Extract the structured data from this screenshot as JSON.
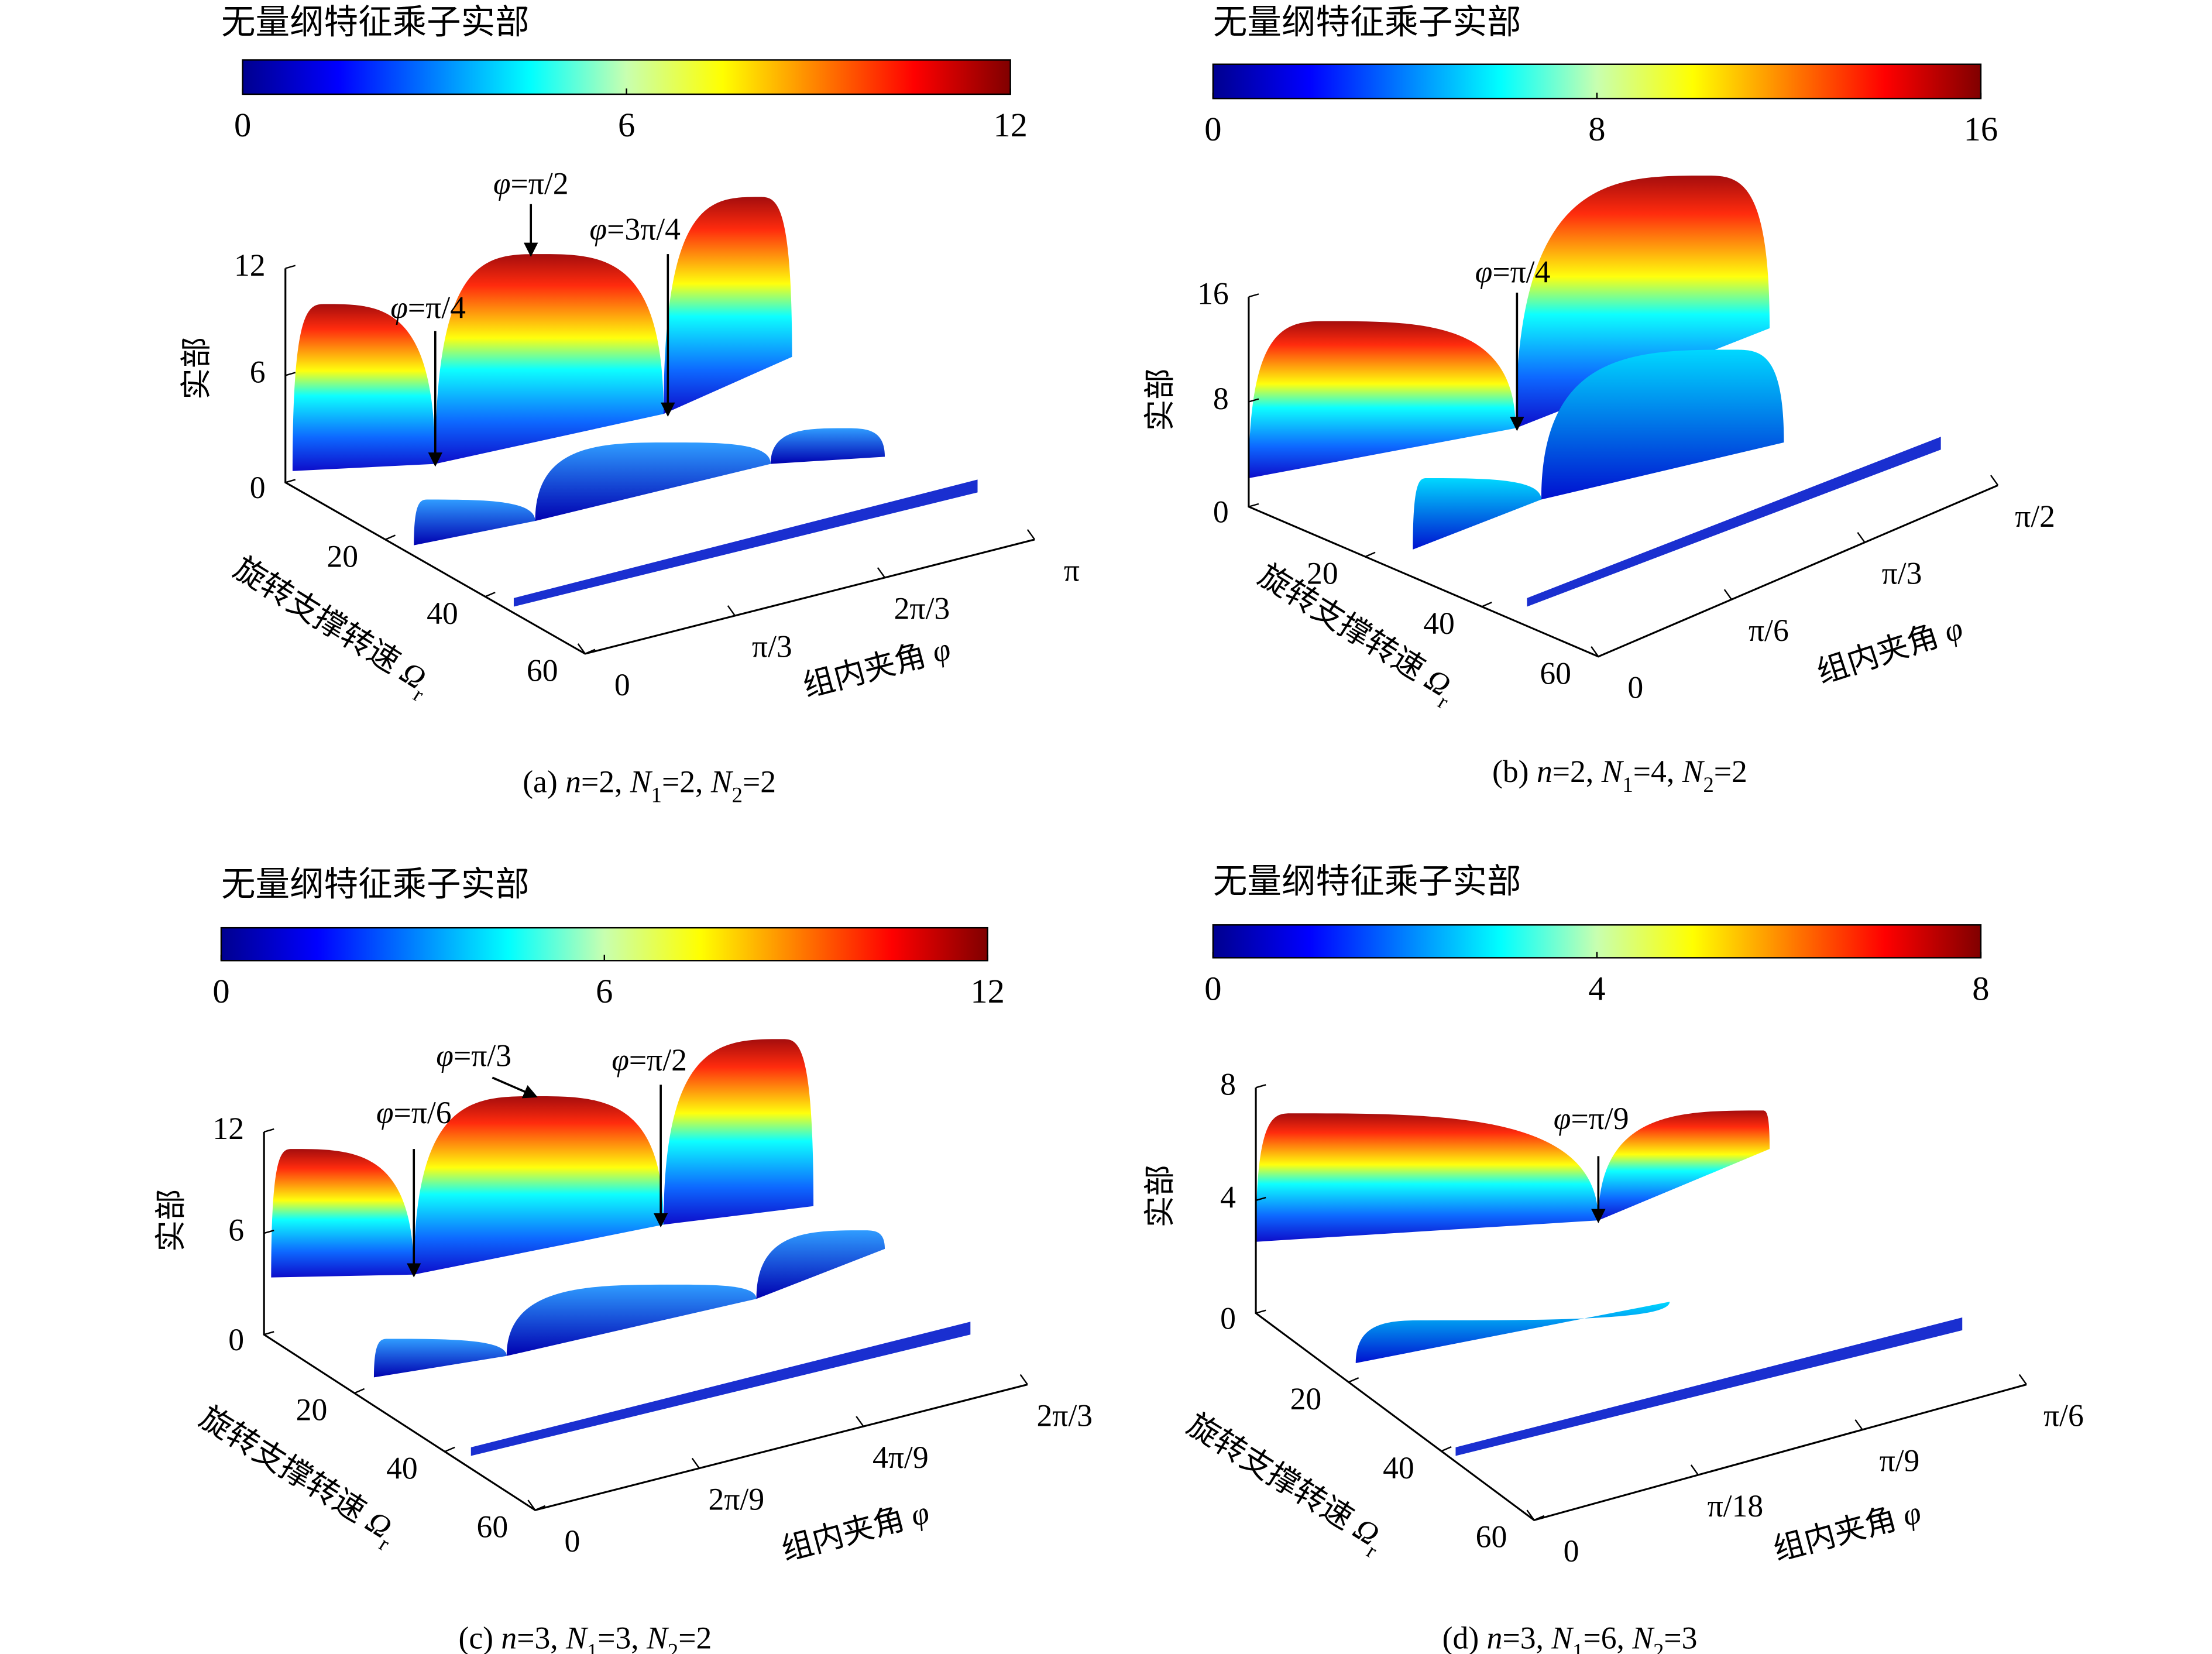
{
  "panels": [
    {
      "colorbar": {
        "title": "无量纲特征乘子实部",
        "lim": [
          0,
          12
        ],
        "ticks": [
          0,
          6,
          12
        ]
      },
      "z_axis": {
        "label": "实部",
        "lim": [
          0,
          12
        ],
        "ticks": [
          0,
          6,
          12
        ]
      },
      "depth_axis": {
        "label": [
          "旋转支撑转速 ",
          "Ω",
          "r"
        ],
        "lim": [
          0,
          60
        ],
        "ticks": [
          20,
          40,
          60
        ]
      },
      "x_axis": {
        "label": [
          "组内夹角 ",
          "φ"
        ],
        "lim": [
          0,
          3.1416
        ],
        "ticks": [
          0,
          {
            "value": 1.0472,
            "label": "π/3"
          },
          {
            "value": 2.0944,
            "label": "2π/3"
          },
          {
            "value": 3.1416,
            "label": "π"
          }
        ]
      },
      "annotations": [
        [
          "φ",
          "=π/4"
        ],
        [
          "φ",
          "=π/2"
        ],
        [
          "φ",
          "=3π/4"
        ]
      ],
      "caption": [
        "(a) ",
        "n",
        "=2, ",
        "N",
        "1",
        "=2, ",
        "N",
        "2",
        "=2"
      ]
    },
    {
      "colorbar": {
        "title": "无量纲特征乘子实部",
        "lim": [
          0,
          16
        ],
        "ticks": [
          0,
          8,
          16
        ]
      },
      "z_axis": {
        "label": "实部",
        "lim": [
          0,
          16
        ],
        "ticks": [
          0,
          8,
          16
        ]
      },
      "depth_axis": {
        "label": [
          "旋转支撑转速 ",
          "Ω",
          "r"
        ],
        "lim": [
          0,
          60
        ],
        "ticks": [
          20,
          40,
          60
        ]
      },
      "x_axis": {
        "label": [
          "组内夹角 ",
          "φ"
        ],
        "lim": [
          0,
          1.5708
        ],
        "ticks": [
          0,
          {
            "value": 0.5236,
            "label": "π/6"
          },
          {
            "value": 1.0472,
            "label": "π/3"
          },
          {
            "value": 1.5708,
            "label": "π/2"
          }
        ]
      },
      "annotations": [
        [
          "φ",
          "=π/4"
        ]
      ],
      "caption": [
        "(b) ",
        "n",
        "=2, ",
        "N",
        "1",
        "=4, ",
        "N",
        "2",
        "=2"
      ]
    },
    {
      "colorbar": {
        "title": "无量纲特征乘子实部",
        "lim": [
          0,
          12
        ],
        "ticks": [
          0,
          6,
          12
        ]
      },
      "z_axis": {
        "label": "实部",
        "lim": [
          0,
          12
        ],
        "ticks": [
          0,
          6,
          12
        ]
      },
      "depth_axis": {
        "label": [
          "旋转支撑转速 ",
          "Ω",
          "r"
        ],
        "lim": [
          0,
          60
        ],
        "ticks": [
          20,
          40,
          60
        ]
      },
      "x_axis": {
        "label": [
          "组内夹角 ",
          "φ"
        ],
        "lim": [
          0,
          2.0944
        ],
        "ticks": [
          0,
          {
            "value": 0.6981,
            "label": "2π/9"
          },
          {
            "value": 1.3963,
            "label": "4π/9"
          },
          {
            "value": 2.0944,
            "label": "2π/3"
          }
        ]
      },
      "annotations": [
        [
          "φ",
          "=π/6"
        ],
        [
          "φ",
          "=π/3"
        ],
        [
          "φ",
          "=π/2"
        ]
      ],
      "caption": [
        "(c) ",
        "n",
        "=3, ",
        "N",
        "1",
        "=3, ",
        "N",
        "2",
        "=2"
      ]
    },
    {
      "colorbar": {
        "title": "无量纲特征乘子实部",
        "lim": [
          0,
          8
        ],
        "ticks": [
          0,
          4,
          8
        ]
      },
      "z_axis": {
        "label": "实部",
        "lim": [
          0,
          8
        ],
        "ticks": [
          0,
          4,
          8
        ]
      },
      "depth_axis": {
        "label": [
          "旋转支撑转速 ",
          "Ω",
          "r"
        ],
        "lim": [
          0,
          60
        ],
        "ticks": [
          20,
          40,
          60
        ]
      },
      "x_axis": {
        "label": [
          "组内夹角 ",
          "φ"
        ],
        "lim": [
          0,
          0.5236
        ],
        "ticks": [
          0,
          {
            "value": 0.1745,
            "label": "π/18"
          },
          {
            "value": 0.3491,
            "label": "π/9"
          },
          {
            "value": 0.5236,
            "label": "π/6"
          }
        ]
      },
      "annotations": [
        [
          "φ",
          "=π/9"
        ]
      ],
      "caption": [
        "(d) ",
        "n",
        "=3, ",
        "N",
        "1",
        "=6, ",
        "N",
        "2",
        "=3"
      ]
    }
  ]
}
